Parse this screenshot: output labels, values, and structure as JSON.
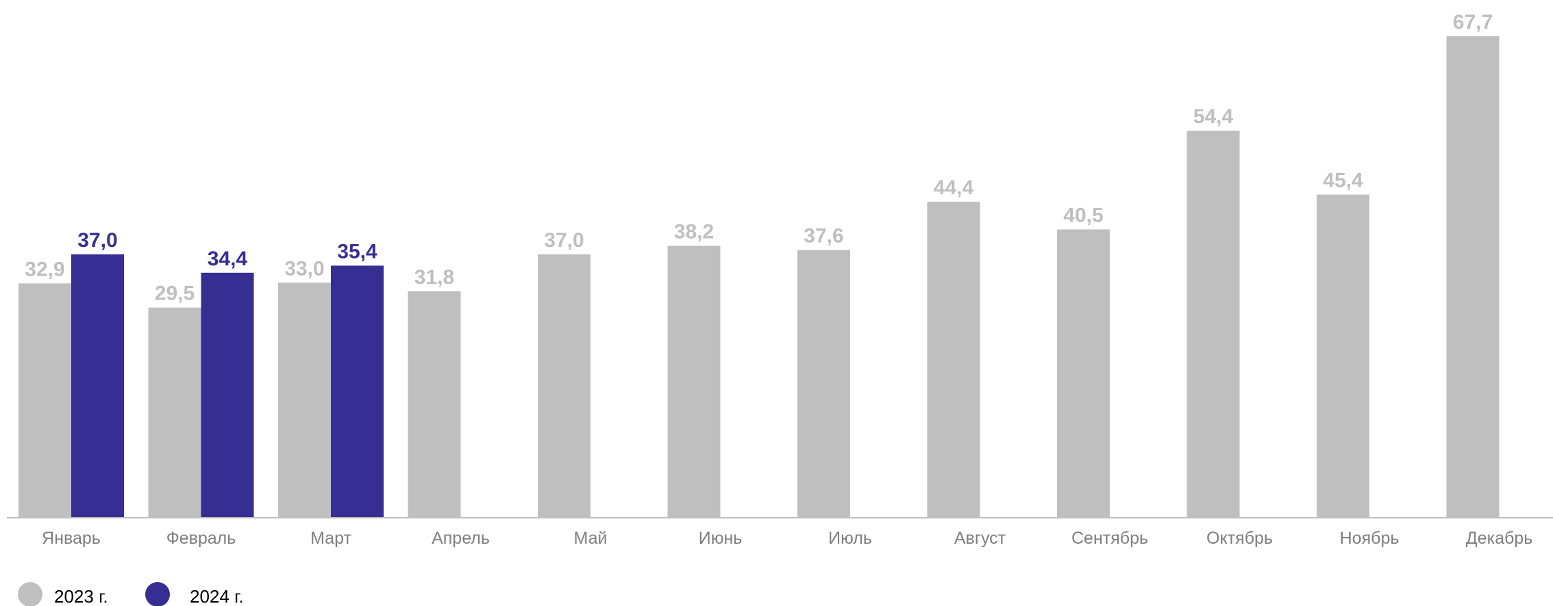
{
  "chart_data": {
    "type": "bar",
    "categories": [
      "Январь",
      "Февраль",
      "Март",
      "Апрель",
      "Май",
      "Июнь",
      "Июль",
      "Август",
      "Сентябрь",
      "Октябрь",
      "Ноябрь",
      "Декабрь"
    ],
    "series": [
      {
        "name": "2023 г.",
        "color": "#bfbfbf",
        "values": [
          32.9,
          29.5,
          33.0,
          31.8,
          37.0,
          38.2,
          37.6,
          44.4,
          40.5,
          54.4,
          45.4,
          67.7
        ],
        "labels": [
          "32,9",
          "29,5",
          "33,0",
          "31,8",
          "37,0",
          "38,2",
          "37,6",
          "44,4",
          "40,5",
          "54,4",
          "45,4",
          "67,7"
        ]
      },
      {
        "name": "2024 г.",
        "color": "#362e92",
        "values": [
          37.0,
          34.4,
          35.4,
          null,
          null,
          null,
          null,
          null,
          null,
          null,
          null,
          null
        ],
        "labels": [
          "37,0",
          "34,4",
          "35,4",
          null,
          null,
          null,
          null,
          null,
          null,
          null,
          null,
          null
        ]
      }
    ],
    "ylim": [
      0,
      67.7
    ],
    "grid": false,
    "legend_position": "bottom-left"
  }
}
